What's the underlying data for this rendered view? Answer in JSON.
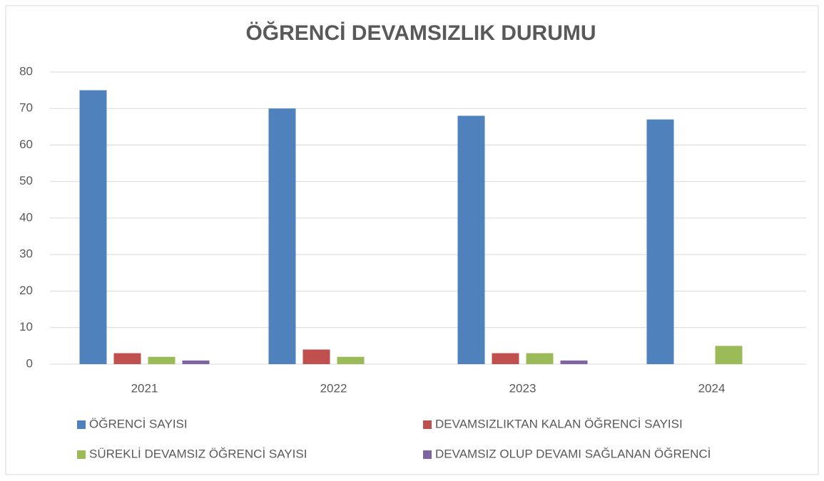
{
  "chart_data": {
    "type": "bar",
    "title": "ÖĞRENCİ DEVAMSIZLIK DURUMU",
    "categories": [
      "2021",
      "2022",
      "2023",
      "2024"
    ],
    "series": [
      {
        "name": "ÖĞRENCİ SAYISI",
        "color": "#4f81bd",
        "values": [
          75,
          70,
          68,
          67
        ]
      },
      {
        "name": "DEVAMSIZLIKTAN KALAN ÖĞRENCİ SAYISI",
        "color": "#c0504d",
        "values": [
          3,
          4,
          3,
          0
        ]
      },
      {
        "name": "SÜREKLİ DEVAMSIZ ÖĞRENCİ SAYISI",
        "color": "#9bbb59",
        "values": [
          2,
          2,
          3,
          5
        ]
      },
      {
        "name": "DEVAMSIZ OLUP DEVAMI SAĞLANAN ÖĞRENCİ",
        "color": "#8064a2",
        "values": [
          1,
          0,
          1,
          0
        ]
      }
    ],
    "ylim": [
      0,
      80
    ],
    "yticks": [
      0,
      10,
      20,
      30,
      40,
      50,
      60,
      70,
      80
    ],
    "grid": true,
    "legend": "bottom"
  }
}
